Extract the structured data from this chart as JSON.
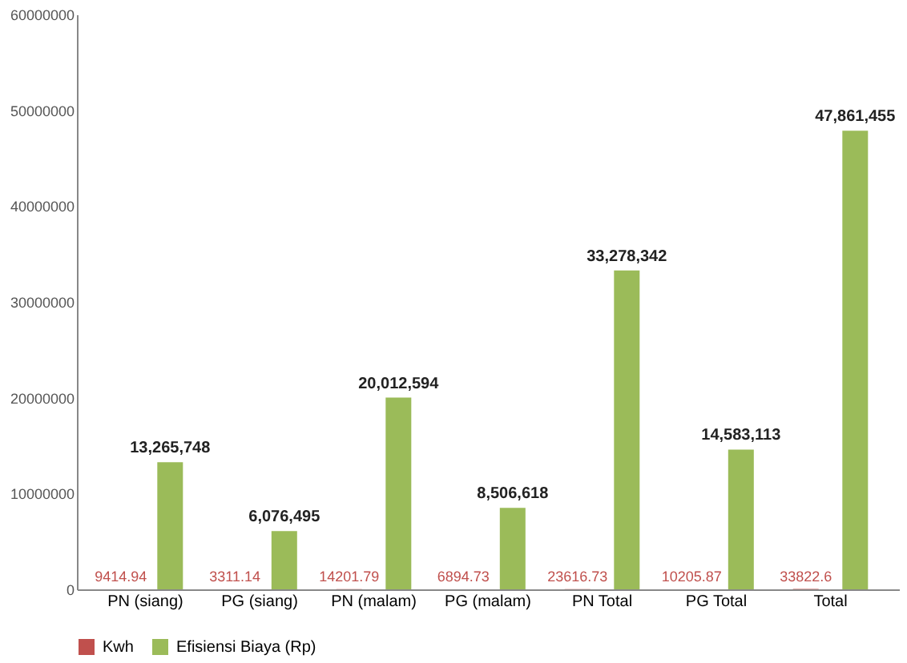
{
  "chart_data": {
    "type": "bar",
    "categories": [
      "PN (siang)",
      "PG (siang)",
      "PN (malam)",
      "PG (malam)",
      "PN Total",
      "PG Total",
      "Total"
    ],
    "series": [
      {
        "name": "Kwh",
        "color": "#c0504d",
        "values": [
          9414.94,
          3311.14,
          14201.79,
          6894.73,
          23616.73,
          10205.87,
          33822.6
        ],
        "value_labels": [
          "9414.94",
          "3311.14",
          "14201.79",
          "6894.73",
          "23616.73",
          "10205.87",
          "33822.6"
        ]
      },
      {
        "name": "Efisiensi Biaya (Rp)",
        "color": "#9bbb59",
        "values": [
          13265748,
          6076495,
          20012594,
          8506618,
          33278342,
          14583113,
          47861455
        ],
        "value_labels": [
          "13,265,748",
          "6,076,495",
          "20,012,594",
          "8,506,618",
          "33,278,342",
          "14,583,113",
          "47,861,455"
        ]
      }
    ],
    "ylim": [
      0,
      60000000
    ],
    "yticks": [
      0,
      10000000,
      20000000,
      30000000,
      40000000,
      50000000,
      60000000
    ],
    "grid": false,
    "legend": "bottom"
  }
}
